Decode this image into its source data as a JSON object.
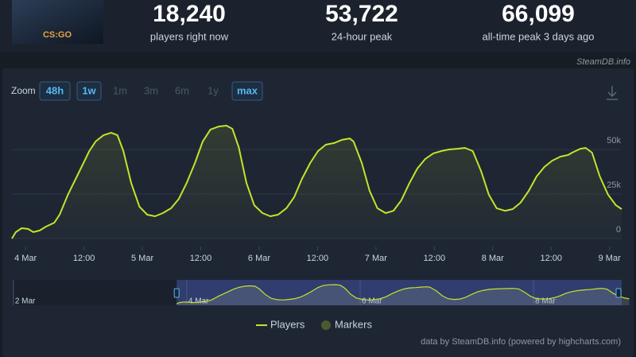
{
  "header": {
    "logo": "CS:GO",
    "stats": [
      {
        "value": "18,240",
        "label": "players right now"
      },
      {
        "value": "53,722",
        "label": "24-hour peak"
      },
      {
        "value": "66,099",
        "label": "all-time peak 3 days ago"
      }
    ],
    "source": "SteamDB.info"
  },
  "zoom": {
    "label": "Zoom",
    "buttons": [
      {
        "label": "48h",
        "state": "on"
      },
      {
        "label": "1w",
        "state": "on"
      },
      {
        "label": "1m",
        "state": "off"
      },
      {
        "label": "3m",
        "state": "off"
      },
      {
        "label": "6m",
        "state": "off"
      },
      {
        "label": "1y",
        "state": "off"
      },
      {
        "label": "max",
        "state": "on"
      }
    ]
  },
  "chart_data": {
    "type": "line",
    "x": [
      -2.8,
      -2.0,
      -0.8,
      0.5,
      1.6,
      2.9,
      4.2,
      5.9,
      7.0,
      8.7,
      10.3,
      11.9,
      13.1,
      14.4,
      16.0,
      17.6,
      18.9,
      20.1,
      21.7,
      23.4,
      25.0,
      26.6,
      28.2,
      29.9,
      31.5,
      33.1,
      34.8,
      36.4,
      38.0,
      39.7,
      41.3,
      42.5,
      43.8,
      45.4,
      47.0,
      48.7,
      50.3,
      51.9,
      53.6,
      55.2,
      56.8,
      58.5,
      60.1,
      61.7,
      63.4,
      65.0,
      66.6,
      67.4,
      69.1,
      70.7,
      72.3,
      74.0,
      75.6,
      77.2,
      78.9,
      80.5,
      82.1,
      83.8,
      85.4,
      87.0,
      88.7,
      90.3,
      91.9,
      93.6,
      95.2,
      96.8,
      98.5,
      100.1,
      101.7,
      103.4,
      105.0,
      106.6,
      108.2,
      109.9,
      111.5,
      112.3,
      114.0,
      115.1,
      116.4,
      118.0,
      119.7,
      121.3,
      122.5
    ],
    "series": [
      {
        "name": "Players",
        "color": "#c6e22a",
        "values": [
          0,
          3600,
          5800,
          5400,
          3600,
          4500,
          6700,
          8900,
          13400,
          24600,
          33500,
          42400,
          49100,
          54500,
          58000,
          59400,
          58000,
          49100,
          31200,
          17900,
          13400,
          12500,
          14300,
          17000,
          22300,
          31200,
          42400,
          54500,
          61200,
          62900,
          63400,
          61600,
          51300,
          31200,
          18700,
          14300,
          12500,
          13400,
          17000,
          23200,
          33500,
          42400,
          49100,
          52700,
          53600,
          55400,
          56200,
          54500,
          42400,
          26800,
          17000,
          14300,
          15600,
          21400,
          31200,
          39300,
          44600,
          47800,
          49100,
          50000,
          50400,
          50900,
          49100,
          37900,
          24600,
          17000,
          15600,
          16500,
          20100,
          26800,
          34800,
          40200,
          43700,
          46000,
          46900,
          48200,
          50400,
          50900,
          48200,
          34800,
          24600,
          18700,
          16500
        ]
      }
    ],
    "markers": {
      "name": "Markers",
      "color": "#4b5a2e"
    },
    "xlim": [
      -2.8,
      122.5
    ],
    "xticks": [
      {
        "value": 0,
        "label": "4 Mar"
      },
      {
        "value": 12,
        "label": "12:00"
      },
      {
        "value": 24,
        "label": "5 Mar"
      },
      {
        "value": 36,
        "label": "12:00"
      },
      {
        "value": 48,
        "label": "6 Mar"
      },
      {
        "value": 60,
        "label": "12:00"
      },
      {
        "value": 72,
        "label": "7 Mar"
      },
      {
        "value": 84,
        "label": "12:00"
      },
      {
        "value": 96,
        "label": "8 Mar"
      },
      {
        "value": 108,
        "label": "12:00"
      },
      {
        "value": 120,
        "label": "9 Mar"
      }
    ],
    "ylim": [
      0,
      75000
    ],
    "yticks": [
      0,
      {
        "value": 25000,
        "label": "25k"
      },
      {
        "value": 50000,
        "label": "50k"
      }
    ],
    "grid": true,
    "navigator": {
      "xlim": [
        -48.4,
        120.4
      ],
      "xticks": [
        {
          "value": -48,
          "label": "2 Mar"
        },
        {
          "value": 0,
          "label": "4 Mar"
        },
        {
          "value": 48,
          "label": "6 Mar"
        },
        {
          "value": 96,
          "label": "8 Mar"
        }
      ]
    },
    "credit": "data by SteamDB.info (powered by highcharts.com)"
  }
}
